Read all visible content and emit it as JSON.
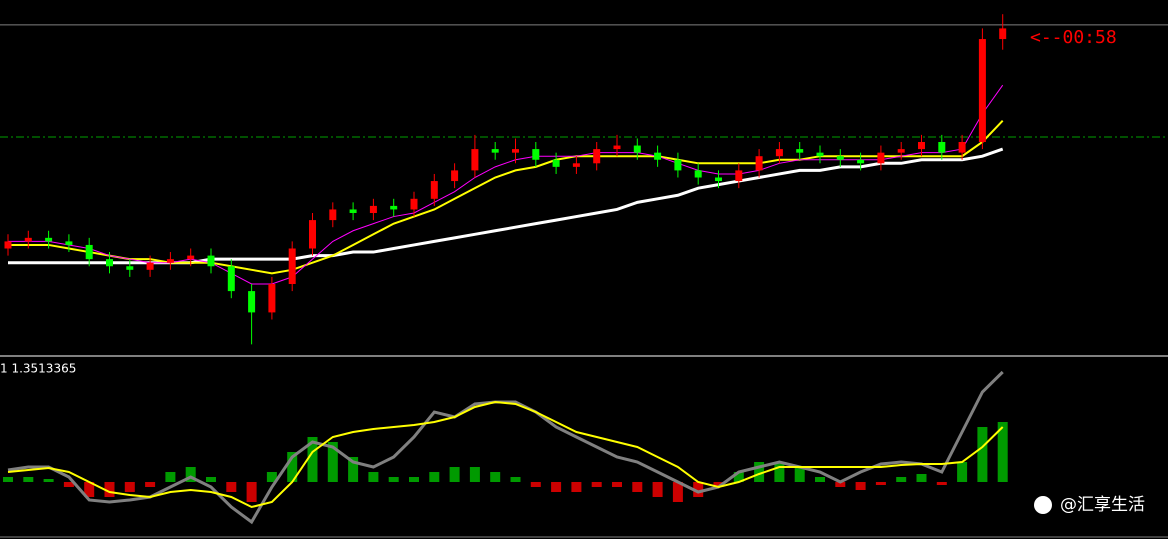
{
  "chart_data": [
    {
      "type": "candlestick",
      "ylim": [
        0,
        100
      ],
      "up_color": "#ff0000",
      "down_color": "#00ff00",
      "bid_line": 93,
      "level_line": 61.4,
      "annotation": "<--00:58",
      "open": [
        30,
        32,
        33,
        32,
        31,
        27,
        25,
        24,
        26,
        27,
        28,
        25,
        18,
        12,
        20,
        30,
        38,
        41,
        40,
        42,
        41,
        44,
        49,
        52,
        58,
        57,
        58,
        55,
        53,
        54,
        58,
        59,
        57,
        55,
        52,
        50,
        49,
        52,
        56,
        58,
        57,
        56,
        55,
        54,
        57,
        58,
        60,
        57,
        60,
        89
      ],
      "high": [
        34,
        35,
        35,
        34,
        33,
        29,
        27,
        28,
        29,
        30,
        30,
        27,
        20,
        22,
        32,
        40,
        43,
        43,
        44,
        44,
        46,
        51,
        54,
        62,
        60,
        61,
        60,
        57,
        56,
        60,
        62,
        61,
        59,
        57,
        54,
        52,
        54,
        58,
        60,
        60,
        59,
        58,
        57,
        59,
        60,
        62,
        62,
        62,
        92,
        96
      ],
      "low": [
        28,
        30,
        30,
        29,
        25,
        23,
        22,
        22,
        24,
        25,
        23,
        16,
        3,
        10,
        18,
        28,
        36,
        38,
        38,
        39,
        39,
        42,
        47,
        50,
        55,
        54,
        53,
        51,
        51,
        52,
        56,
        55,
        53,
        50,
        48,
        47,
        47,
        50,
        54,
        55,
        54,
        53,
        52,
        52,
        55,
        56,
        55,
        55,
        58,
        86
      ],
      "close": [
        32,
        33,
        32,
        31,
        27,
        25,
        24,
        26,
        27,
        28,
        25,
        18,
        12,
        20,
        30,
        38,
        41,
        40,
        42,
        41,
        44,
        49,
        52,
        58,
        57,
        58,
        55,
        53,
        54,
        58,
        59,
        57,
        55,
        52,
        50,
        49,
        52,
        56,
        58,
        57,
        56,
        55,
        54,
        57,
        58,
        60,
        57,
        60,
        89,
        92
      ],
      "series": [
        {
          "color": "#ffffff",
          "values": [
            26,
            26,
            26,
            26,
            26,
            26,
            26,
            26,
            26,
            26,
            27,
            27,
            27,
            27,
            27,
            28,
            28,
            29,
            29,
            30,
            31,
            32,
            33,
            34,
            35,
            36,
            37,
            38,
            39,
            40,
            41,
            43,
            44,
            45,
            47,
            48,
            49,
            50,
            51,
            52,
            52,
            53,
            53,
            54,
            54,
            55,
            55,
            55,
            56,
            58
          ]
        },
        {
          "color": "#ffff00",
          "values": [
            31,
            31,
            31,
            30,
            29,
            28,
            27,
            27,
            26,
            26,
            26,
            25,
            24,
            23,
            24,
            26,
            28,
            31,
            34,
            37,
            39,
            41,
            44,
            47,
            50,
            52,
            53,
            55,
            56,
            56,
            56,
            56,
            56,
            55,
            54,
            54,
            54,
            54,
            55,
            55,
            56,
            56,
            56,
            56,
            56,
            56,
            56,
            56,
            60,
            66
          ]
        },
        {
          "color": "#ff00ff",
          "values": [
            32,
            32,
            32,
            31,
            30,
            28,
            27,
            26,
            26,
            27,
            26,
            23,
            20,
            20,
            22,
            27,
            32,
            35,
            37,
            39,
            40,
            43,
            46,
            50,
            53,
            55,
            56,
            56,
            56,
            57,
            57,
            57,
            56,
            54,
            52,
            51,
            51,
            52,
            54,
            55,
            55,
            55,
            55,
            55,
            56,
            57,
            57,
            58,
            68,
            76
          ]
        }
      ]
    },
    {
      "type": "bar",
      "label": "1 1.3513365",
      "ylim": [
        -57,
        125
      ],
      "up_color": "#00c000",
      "down_color": "#ff0000",
      "values": [
        5,
        5,
        3,
        -5,
        -15,
        -15,
        -10,
        -5,
        10,
        15,
        5,
        -10,
        -20,
        10,
        30,
        45,
        40,
        25,
        10,
        5,
        5,
        10,
        15,
        15,
        10,
        5,
        -5,
        -10,
        -10,
        -5,
        -5,
        -10,
        -15,
        -20,
        -15,
        -5,
        10,
        20,
        20,
        15,
        5,
        -5,
        -8,
        -3,
        5,
        8,
        -3,
        20,
        55,
        60
      ],
      "series": [
        {
          "color": "#808080",
          "values": [
            12,
            15,
            15,
            5,
            -18,
            -20,
            -18,
            -15,
            -5,
            5,
            -5,
            -25,
            -40,
            -5,
            25,
            40,
            35,
            20,
            15,
            25,
            45,
            70,
            65,
            78,
            80,
            80,
            70,
            55,
            45,
            35,
            25,
            20,
            10,
            0,
            -10,
            -5,
            10,
            15,
            20,
            15,
            10,
            0,
            10,
            18,
            20,
            18,
            10,
            50,
            90,
            110
          ]
        },
        {
          "color": "#ffff00",
          "values": [
            10,
            12,
            14,
            10,
            0,
            -10,
            -13,
            -15,
            -10,
            -8,
            -10,
            -15,
            -25,
            -20,
            0,
            30,
            45,
            50,
            53,
            55,
            57,
            60,
            65,
            75,
            80,
            78,
            70,
            60,
            50,
            45,
            40,
            35,
            25,
            15,
            0,
            -5,
            0,
            8,
            15,
            15,
            15,
            15,
            15,
            15,
            17,
            18,
            18,
            20,
            35,
            55
          ]
        }
      ]
    }
  ],
  "watermark": "@汇享生活"
}
